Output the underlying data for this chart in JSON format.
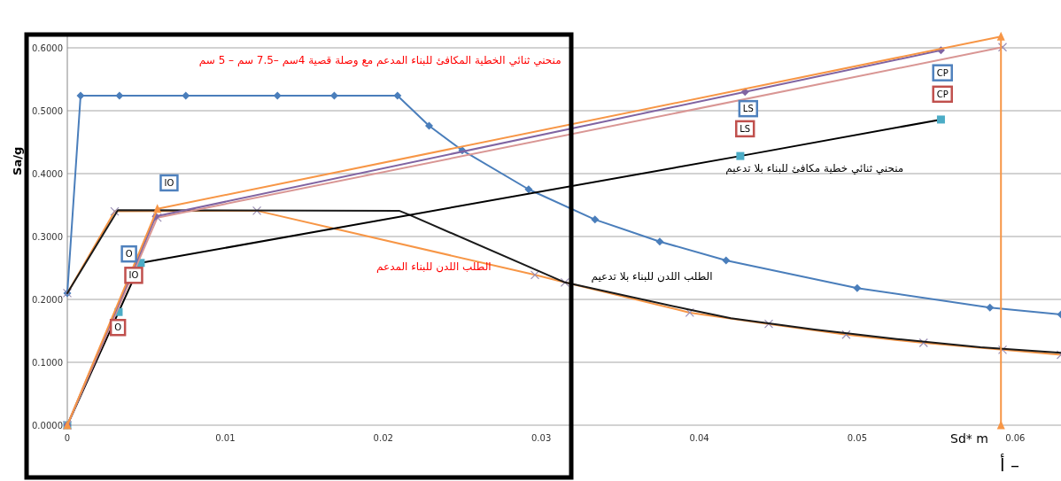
{
  "chart_data": {
    "type": "line",
    "xlabel": "Sd*   m",
    "ylabel": "Sa/g",
    "xlim": [
      0,
      0.0629
    ],
    "ylim": [
      0,
      0.62
    ],
    "xticks": [
      0,
      0.01,
      0.02,
      0.03,
      0.04,
      0.05,
      0.06
    ],
    "yticks": [
      {
        "value": 0,
        "label": "0.0000"
      },
      {
        "value": 0.1,
        "label": "0.1000"
      },
      {
        "value": 0.2,
        "label": "0.2000"
      },
      {
        "value": 0.3,
        "label": "0.3000"
      },
      {
        "value": 0.4,
        "label": "0.4000"
      },
      {
        "value": 0.5,
        "label": "0.5000"
      },
      {
        "value": 0.6,
        "label": "0.6000"
      }
    ],
    "grid": "y",
    "series": [
      {
        "color": "#4a7ebb",
        "marker": "diamond",
        "x": [
          0,
          0.00084,
          0.0033,
          0.0075,
          0.0133,
          0.0169,
          0.0209,
          0.0229,
          0.025,
          0.0292,
          0.0334,
          0.0375,
          0.0417,
          0.05,
          0.0584,
          0.0629
        ],
        "values": [
          0.21,
          0.524,
          0.524,
          0.524,
          0.524,
          0.524,
          0.524,
          0.476,
          0.437,
          0.375,
          0.327,
          0.292,
          0.262,
          0.218,
          0.187,
          0.176
        ]
      },
      {
        "name": "الطلب اللدن للبناء المدعم",
        "color": "#f79646",
        "marker": "cross",
        "x": [
          0,
          0.003,
          0.012,
          0.0296,
          0.0315,
          0.0394,
          0.0444,
          0.0493,
          0.0542,
          0.0592,
          0.0629
        ],
        "values": [
          0.21,
          0.34,
          0.341,
          0.239,
          0.227,
          0.179,
          0.161,
          0.144,
          0.131,
          0.12,
          0.112
        ]
      },
      {
        "name": "الطلب اللدن للبناء بلا تدعيم",
        "color": "#1a1a1a",
        "marker": "none",
        "x": [
          0,
          0.0032,
          0.021,
          0.0216,
          0.0315,
          0.0395,
          0.042,
          0.0473,
          0.0525,
          0.0578,
          0.0629
        ],
        "values": [
          0.21,
          0.342,
          0.341,
          0.335,
          0.227,
          0.183,
          0.17,
          0.152,
          0.137,
          0.124,
          0.115
        ]
      },
      {
        "name": "منحني ثنائي خطية مكافئ للبناء بلا تدعيم",
        "color": "#000000",
        "marker": "square",
        "x": [
          0,
          0.00325,
          0.00465,
          0.0426,
          0.0553
        ],
        "values": [
          0,
          0.18,
          0.258,
          0.428,
          0.486
        ]
      },
      {
        "color": "#d99694",
        "marker": "cross",
        "x": [
          0,
          0.0057,
          0.0592
        ],
        "values": [
          0,
          0.33,
          0.601
        ]
      },
      {
        "color": "#8064a2",
        "marker": "diamond",
        "x": [
          0,
          0.0056,
          0.0429,
          0.0553
        ],
        "values": [
          0,
          0.332,
          0.53,
          0.596
        ]
      },
      {
        "color": "#f79646",
        "marker": "triangle",
        "x": [
          0,
          0.0057,
          0.0591,
          0.0591
        ],
        "values": [
          0,
          0.344,
          0.618,
          0
        ]
      }
    ],
    "annotations": [
      {
        "text": "IO",
        "x": 0.00644,
        "y": 0.386
      },
      {
        "text": "O",
        "x": 0.0039,
        "y": 0.273
      },
      {
        "text": "IO",
        "x": 0.0042,
        "y": 0.239
      },
      {
        "text": "O",
        "x": 0.0032,
        "y": 0.156
      },
      {
        "text": "LS",
        "x": 0.0431,
        "y": 0.504
      },
      {
        "text": "LS",
        "x": 0.0429,
        "y": 0.472
      },
      {
        "text": "CP",
        "x": 0.0554,
        "y": 0.561
      },
      {
        "text": "CP",
        "x": 0.0554,
        "y": 0.527
      },
      "منحني ثنائي الخطية المكافئ للبناء المدعم مع وصلة قصية 4سم –7.5 سم – 5 سم",
      "أ –"
    ]
  }
}
